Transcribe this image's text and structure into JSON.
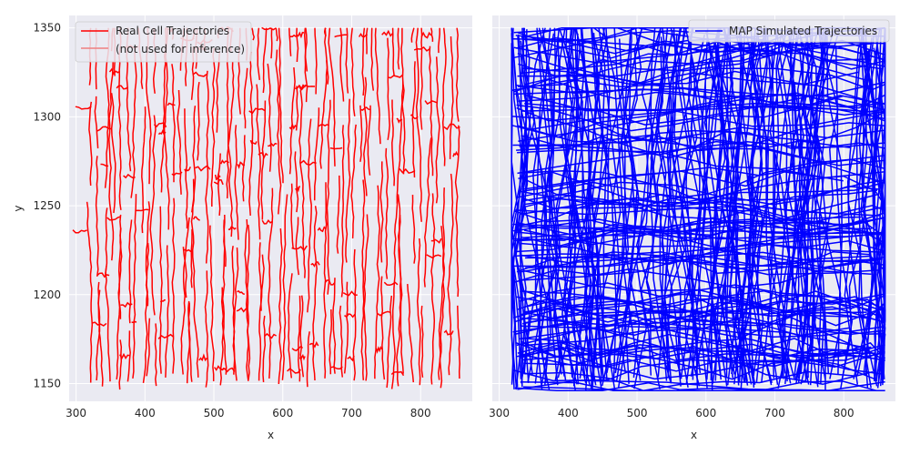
{
  "chart_data": [
    {
      "type": "line",
      "xlabel": "x",
      "ylabel": "y",
      "xlim": [
        290,
        875
      ],
      "ylim": [
        1140,
        1357
      ],
      "xticks": [
        300,
        400,
        500,
        600,
        700,
        800
      ],
      "yticks": [
        1150,
        1200,
        1250,
        1300,
        1350
      ],
      "grid": true,
      "legend_position": "top-left",
      "series": [
        {
          "name": "Real Cell Trajectories",
          "color": "#ff0000"
        },
        {
          "name": "(not used for inference)",
          "color": "#f08080"
        }
      ],
      "x_range_data": [
        318,
        860
      ],
      "y_range_data": [
        1146,
        1350
      ]
    },
    {
      "type": "line",
      "xlabel": "x",
      "ylabel": "",
      "xlim": [
        290,
        875
      ],
      "ylim": [
        1140,
        1357
      ],
      "xticks": [
        300,
        400,
        500,
        600,
        700,
        800
      ],
      "yticks": [],
      "grid": true,
      "legend_position": "top-right",
      "series": [
        {
          "name": "MAP Simulated Trajectories",
          "color": "#0000ff"
        }
      ],
      "x_range_data": [
        318,
        860
      ],
      "y_range_data": [
        1146,
        1350
      ]
    }
  ]
}
